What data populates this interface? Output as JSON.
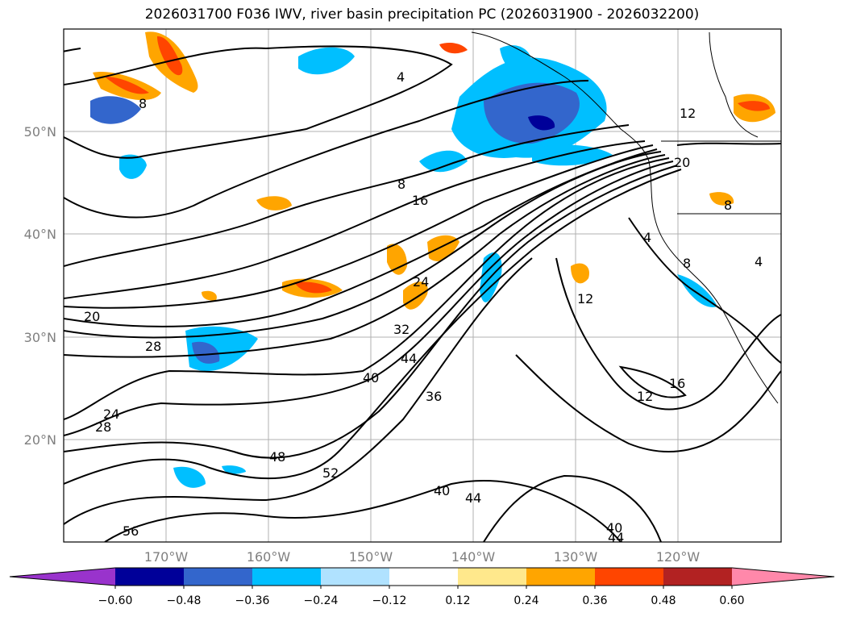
{
  "title": "2026031700 F036 IWV, river basin precipitation PC (2026031900 - 2026032200)",
  "map": {
    "lat_labels": [
      "50°N",
      "40°N",
      "30°N",
      "20°N"
    ],
    "lon_labels": [
      "170°W",
      "160°W",
      "150°W",
      "140°W",
      "130°W",
      "120°W"
    ],
    "extent": {
      "lon_min": -180,
      "lon_max": -110,
      "lat_min": 10,
      "lat_max": 60
    }
  },
  "contour_labels": [
    "8",
    "4",
    "8",
    "16",
    "20",
    "28",
    "24",
    "28",
    "32",
    "24",
    "44",
    "40",
    "36",
    "48",
    "52",
    "40",
    "44",
    "56",
    "12",
    "16",
    "12",
    "12",
    "20",
    "4",
    "8",
    "4",
    "8",
    "40",
    "44"
  ],
  "colorbar": {
    "colors": [
      "#9933cc",
      "#000099",
      "#3366cc",
      "#00bfff",
      "#b0e2ff",
      "#ffffff",
      "#ffe88c",
      "#ffa500",
      "#ff4500",
      "#b22222",
      "#ff88aa"
    ],
    "tick_labels": [
      "−0.60",
      "−0.48",
      "−0.36",
      "−0.24",
      "−0.12",
      "0.12",
      "0.24",
      "0.36",
      "0.48",
      "0.60"
    ]
  }
}
